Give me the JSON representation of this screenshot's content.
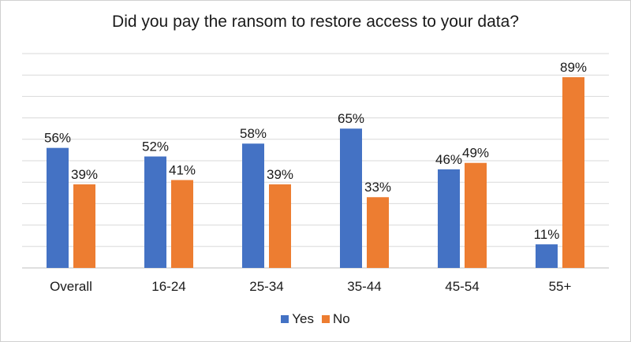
{
  "chart_data": {
    "type": "bar",
    "title": "Did you pay the ransom to restore access to your data?",
    "categories": [
      "Overall",
      "16-24",
      "25-34",
      "35-44",
      "45-54",
      "55+"
    ],
    "series": [
      {
        "name": "Yes",
        "color": "#4472C4",
        "values": [
          56,
          52,
          58,
          65,
          46,
          11
        ]
      },
      {
        "name": "No",
        "color": "#ED7D31",
        "values": [
          39,
          41,
          39,
          33,
          49,
          89
        ]
      }
    ],
    "value_suffix": "%",
    "ylim": [
      0,
      100
    ],
    "grid": true,
    "legend": "bottom"
  }
}
